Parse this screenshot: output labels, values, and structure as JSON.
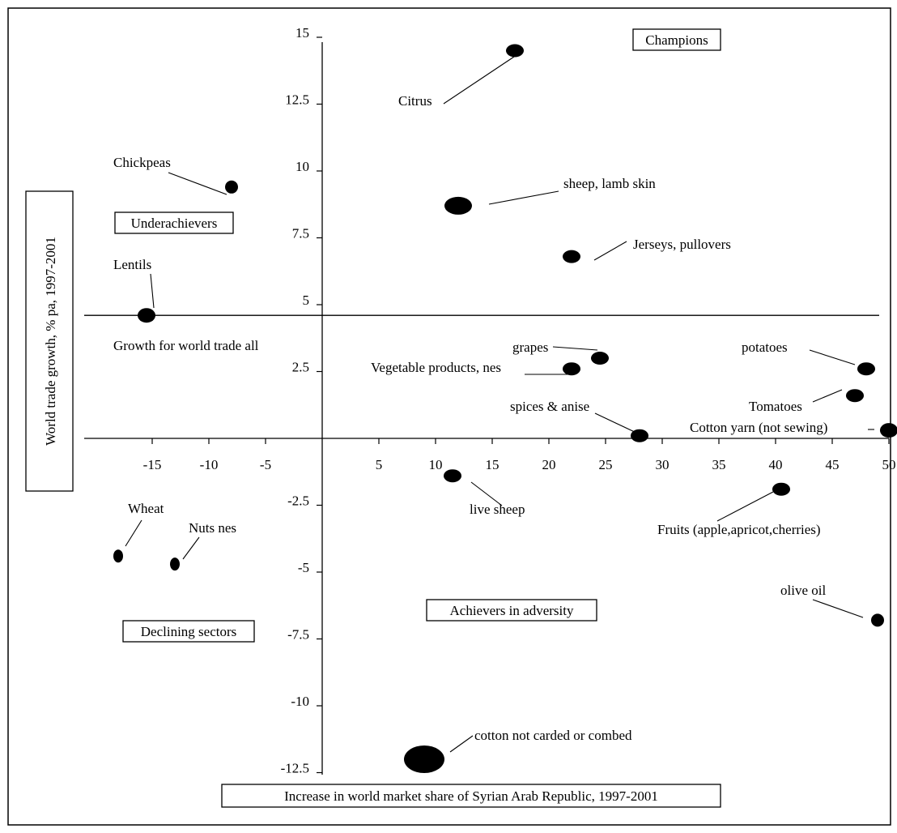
{
  "chart_data": {
    "type": "scatter",
    "title": "",
    "xlabel": "Increase in world market share of Syrian Arab Republic, 1997-2001",
    "ylabel": "World trade growth, % pa, 1997-2001",
    "xlim": [
      -20,
      50
    ],
    "ylim": [
      -12.5,
      15
    ],
    "x_ticks": [
      -15,
      -10,
      -5,
      5,
      10,
      15,
      20,
      25,
      30,
      35,
      40,
      45,
      50
    ],
    "y_ticks": [
      15,
      12.5,
      10,
      7.5,
      5,
      2.5,
      -2.5,
      -5,
      -7.5,
      -10,
      -12.5
    ],
    "reference_line": {
      "y": 4.6,
      "label": "Growth for world trade all"
    },
    "quadrants": [
      "Champions",
      "Underachievers",
      "Declining sectors",
      "Achievers in adversity"
    ],
    "points": [
      {
        "label": "Citrus",
        "x": 17,
        "y": 14.5
      },
      {
        "label": "Chickpeas",
        "x": -8,
        "y": 9.4
      },
      {
        "label": "sheep, lamb skin",
        "x": 12,
        "y": 8.7
      },
      {
        "label": "Jerseys, pullovers",
        "x": 22,
        "y": 6.8
      },
      {
        "label": "Lentils",
        "x": -15.5,
        "y": 4.6
      },
      {
        "label": "grapes",
        "x": 24.5,
        "y": 3.0
      },
      {
        "label": "Vegetable products, nes",
        "x": 22,
        "y": 2.6
      },
      {
        "label": "potatoes",
        "x": 48,
        "y": 2.6
      },
      {
        "label": "Tomatoes",
        "x": 47,
        "y": 1.6
      },
      {
        "label": "spices & anise",
        "x": 28,
        "y": 0.1
      },
      {
        "label": "Cotton yarn (not sewing)",
        "x": 50,
        "y": 0.3
      },
      {
        "label": "live sheep",
        "x": 11.5,
        "y": -1.4
      },
      {
        "label": "Fruits (apple,apricot,cherries)",
        "x": 40.5,
        "y": -1.9
      },
      {
        "label": "Wheat",
        "x": -18,
        "y": -4.4
      },
      {
        "label": "Nuts nes",
        "x": -13,
        "y": -4.7
      },
      {
        "label": "olive oil",
        "x": 49,
        "y": -6.8
      },
      {
        "label": "cotton not carded or combed",
        "x": 9,
        "y": -12
      }
    ]
  }
}
